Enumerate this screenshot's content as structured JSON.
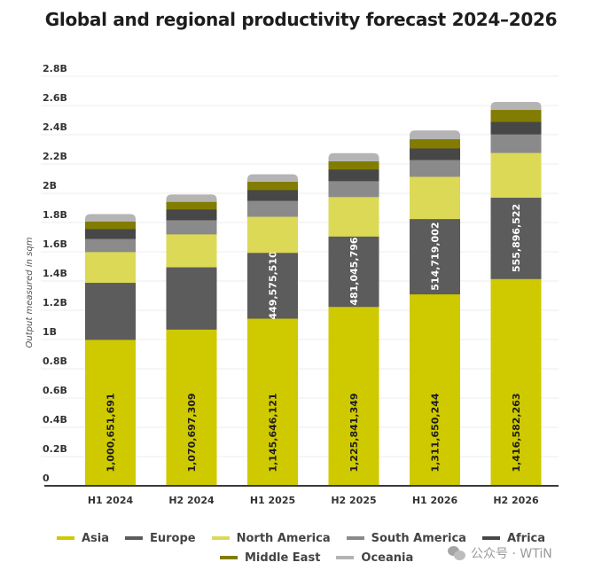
{
  "title": "Global and regional productivity forecast 2024–2026",
  "watermark": "公众号 · WTiN",
  "chart_data": {
    "type": "bar",
    "stacked": true,
    "title": "Global and regional productivity forecast 2024–2026",
    "xlabel": "",
    "ylabel": "Output measured in sqm",
    "ylim": [
      0,
      2.8
    ],
    "yunit": "B",
    "yticks": [
      "0",
      "0.2B",
      "0.4B",
      "0.6B",
      "0.8B",
      "1B",
      "1.2B",
      "1.4B",
      "1.6B",
      "1.8B",
      "2B",
      "2.2B",
      "2.4B",
      "2.6B",
      "2.8B"
    ],
    "grid": true,
    "legend_position": "bottom",
    "categories": [
      "H1 2024",
      "H2 2024",
      "H1 2025",
      "H2 2025",
      "H1 2026",
      "H2 2026"
    ],
    "series": [
      {
        "name": "Asia",
        "color": "#cfc900",
        "values": [
          1.000651691,
          1.070697309,
          1.145646121,
          1.225841349,
          1.311650244,
          1.416582263
        ],
        "labels": [
          "1,000,651,691",
          "1,070,697,309",
          "1,145,646,121",
          "1,225,841,349",
          "1,311,650,244",
          "1,416,582,263"
        ],
        "label_color": "#1d1d1d"
      },
      {
        "name": "Europe",
        "color": "#5c5c5c",
        "values": [
          0.39,
          0.426,
          0.44957551,
          0.481045796,
          0.514719002,
          0.555896522
        ],
        "labels": [
          "",
          "",
          "449,575,510",
          "481,045,796",
          "514,719,002",
          "555,896,522"
        ],
        "label_color": "#ffffff"
      },
      {
        "name": "North America",
        "color": "#dcd957",
        "values": [
          0.21,
          0.225,
          0.247,
          0.27,
          0.289,
          0.306
        ]
      },
      {
        "name": "South America",
        "color": "#8a8a8a",
        "values": [
          0.09,
          0.097,
          0.109,
          0.109,
          0.115,
          0.127
        ]
      },
      {
        "name": "Africa",
        "color": "#474747",
        "values": [
          0.067,
          0.073,
          0.073,
          0.079,
          0.079,
          0.085
        ]
      },
      {
        "name": "Middle East",
        "color": "#827c00",
        "values": [
          0.05,
          0.05,
          0.055,
          0.054,
          0.06,
          0.079
        ]
      },
      {
        "name": "Oceania",
        "color": "#b4b4b4",
        "values": [
          0.05,
          0.05,
          0.05,
          0.055,
          0.06,
          0.055
        ]
      }
    ]
  }
}
